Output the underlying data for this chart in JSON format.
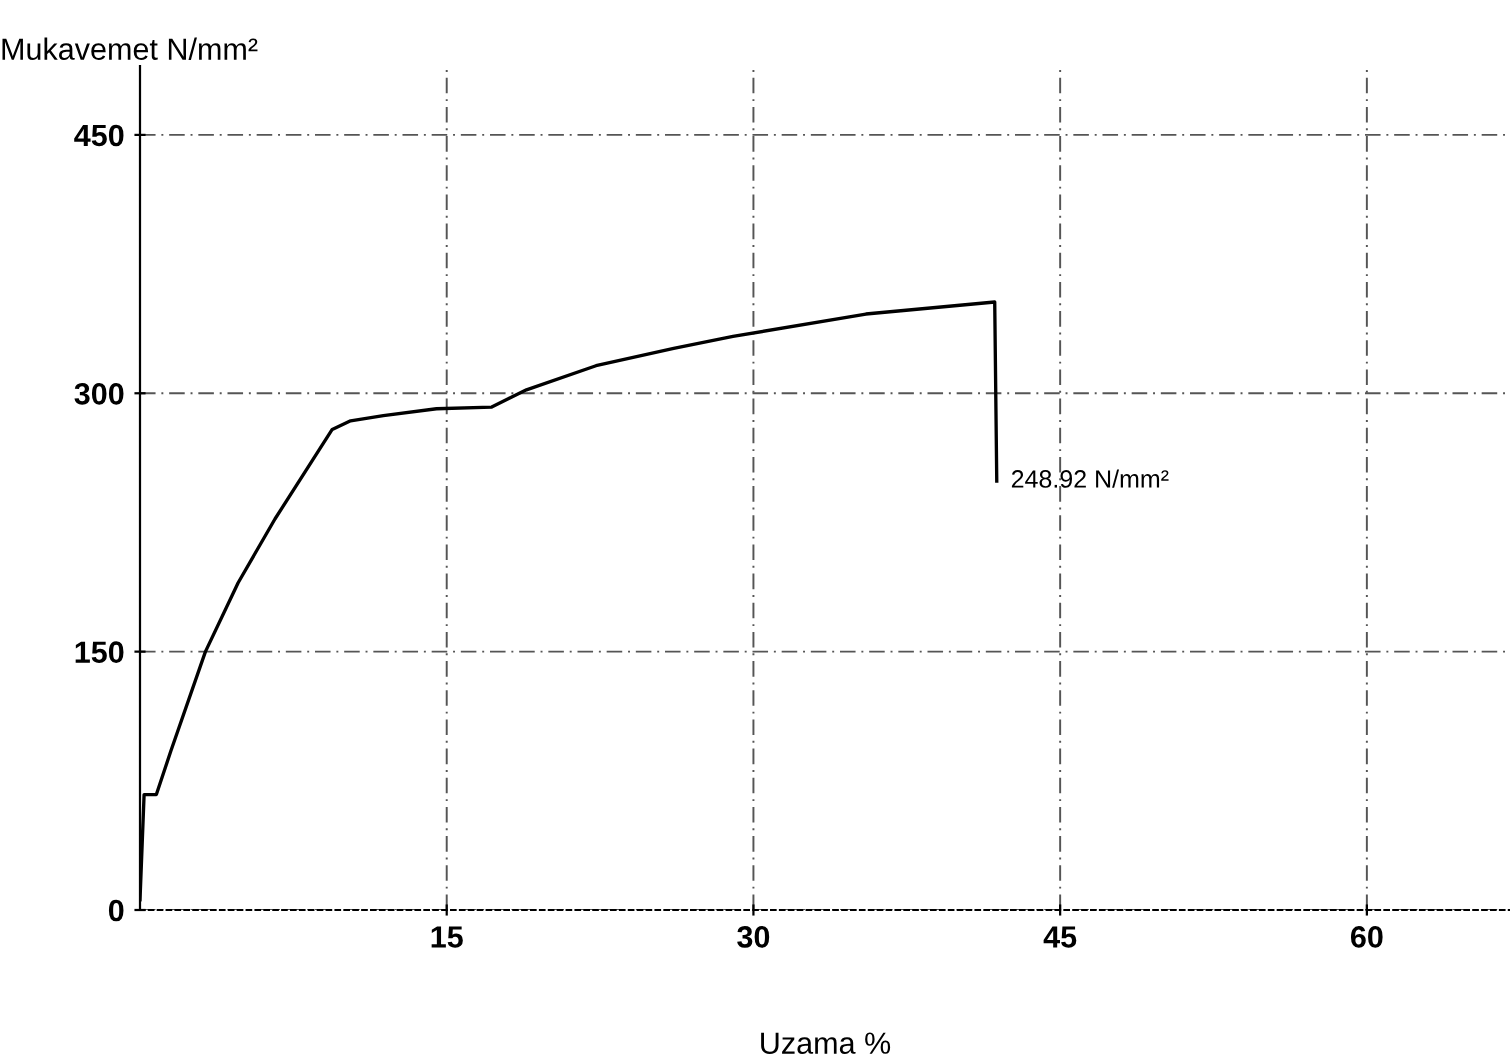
{
  "chart_data": {
    "type": "line",
    "ylabel": "Mukavemet N/mm²",
    "xlabel": "Uzama %",
    "x": [
      0,
      0.2,
      0.8,
      1.5,
      3.2,
      4.8,
      6.6,
      9.4,
      10.3,
      11.9,
      14.5,
      17.2,
      18.9,
      22.3,
      26.1,
      29,
      35.5,
      41.8,
      41.9
    ],
    "series": [
      {
        "color": "#000000",
        "values": [
          6,
          67,
          67,
          92,
          150,
          190,
          227,
          279,
          284,
          287,
          291,
          292,
          302,
          316,
          326,
          333,
          346,
          353,
          249
        ]
      }
    ],
    "xlim": [
      0,
      67
    ],
    "ylim": [
      0,
      490
    ],
    "xticks": [
      15,
      30,
      45,
      60
    ],
    "yticks": [
      0,
      150,
      300,
      450
    ],
    "grid": true,
    "marker": "none",
    "line_style": "solid",
    "annotations": [
      {
        "text": "248.92 N/mm²",
        "x": 41.9,
        "y": 249
      }
    ]
  }
}
